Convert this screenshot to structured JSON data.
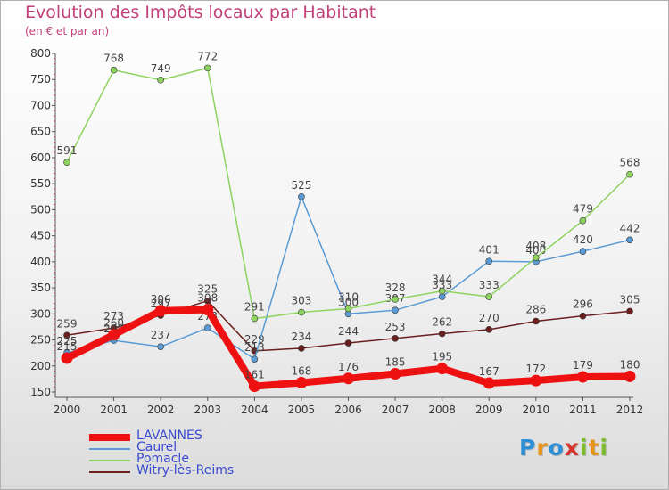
{
  "chart_data": {
    "type": "line",
    "title": "Evolution des Impôts locaux par Habitant",
    "subtitle": "(en € et par an)",
    "xlabel": "",
    "ylabel": "",
    "ylim": [
      150,
      800
    ],
    "yticks": [
      150,
      200,
      250,
      300,
      350,
      400,
      450,
      500,
      550,
      600,
      650,
      700,
      750,
      800
    ],
    "x": [
      2000,
      2001,
      2002,
      2003,
      2004,
      2005,
      2006,
      2007,
      2008,
      2009,
      2010,
      2011,
      2012
    ],
    "grid": false,
    "legend_position": "bottom-left",
    "series": [
      {
        "name": "Witry-lès-Reims",
        "color": "#6b1f1f",
        "values": [
          259,
          273,
          297,
          325,
          229,
          234,
          244,
          253,
          262,
          270,
          286,
          296,
          305
        ],
        "labels": [
          "259",
          "273",
          "297",
          "325",
          "229",
          "234",
          "244",
          "253",
          "262",
          "270",
          "286",
          "296",
          "305"
        ]
      },
      {
        "name": "Caurel",
        "color": "#5b9bd5",
        "values": [
          225,
          249,
          237,
          273,
          213,
          525,
          300,
          307,
          333,
          401,
          400,
          420,
          442
        ],
        "labels": [
          "225",
          "249",
          "237",
          "273",
          "213",
          "525",
          "300",
          "307",
          "333",
          "401",
          "400",
          "420",
          "442"
        ]
      },
      {
        "name": "Pomacle",
        "color": "#8dd35f",
        "values": [
          591,
          768,
          749,
          772,
          291,
          303,
          310,
          328,
          344,
          333,
          408,
          479,
          568
        ],
        "labels": [
          "591",
          "768",
          "749",
          "772",
          "291",
          "303",
          "310",
          "328",
          "344",
          "333",
          "408",
          "479",
          "568"
        ]
      },
      {
        "name": "LAVANNES",
        "color": "#ee1111",
        "values": [
          215,
          260,
          306,
          308,
          161,
          168,
          176,
          185,
          195,
          167,
          172,
          179,
          180
        ],
        "labels": [
          "215",
          "260",
          "306",
          "308",
          "161",
          "168",
          "176",
          "185",
          "195",
          "167",
          "172",
          "179",
          "180"
        ]
      }
    ]
  },
  "legend": {
    "items": [
      {
        "name": "LAVANNES",
        "color": "#ee1111"
      },
      {
        "name": "Caurel",
        "color": "#5b9bd5"
      },
      {
        "name": "Pomacle",
        "color": "#8dd35f"
      },
      {
        "name": "Witry-lès-Reims",
        "color": "#6b1f1f"
      }
    ]
  },
  "logo": {
    "letters": [
      "P",
      "r",
      "o",
      "x",
      "i",
      "t",
      "i"
    ],
    "colors": [
      "#2f8fd6",
      "#e9931a",
      "#2f8fd6",
      "#d6332a",
      "#7cbc2e",
      "#e9931a",
      "#7cbc2e"
    ]
  }
}
